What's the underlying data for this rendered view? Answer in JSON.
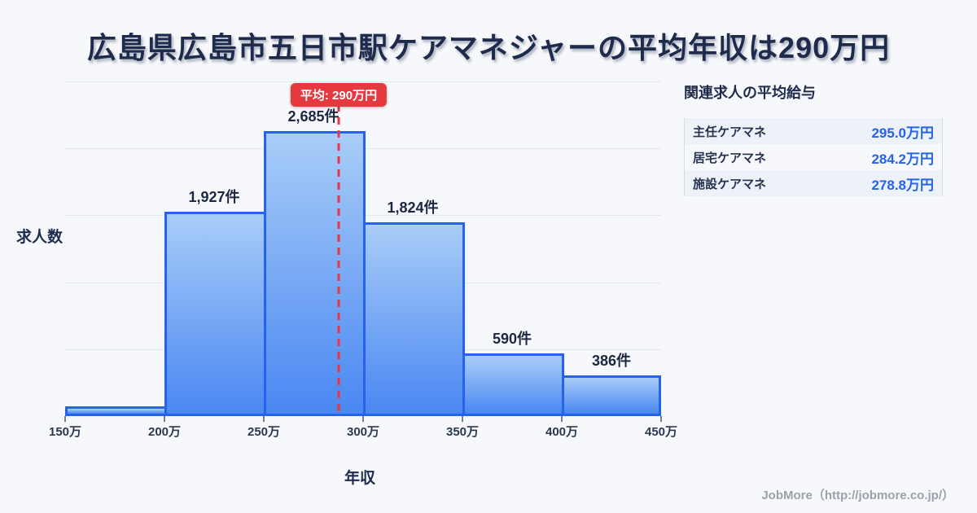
{
  "title": "広島県広島市五日市駅ケアマネジャーの平均年収は290万円",
  "chart_data": {
    "type": "bar",
    "title": "広島県広島市五日市駅ケアマネジャーの平均年収は290万円",
    "xlabel": "年収",
    "ylabel": "求人数",
    "x_tick_labels": [
      "150万",
      "200万",
      "250万",
      "300万",
      "350万",
      "400万",
      "450万"
    ],
    "bin_edges_man": [
      150,
      200,
      250,
      300,
      350,
      400,
      450
    ],
    "values": [
      90,
      1927,
      2685,
      1824,
      590,
      386
    ],
    "bar_labels": [
      "",
      "1,927件",
      "2,685件",
      "1,824件",
      "590件",
      "386件"
    ],
    "ylim": [
      0,
      3150
    ],
    "grid": true,
    "legend": false,
    "average_line": {
      "x_man": 290,
      "badge": "平均: 290万円"
    }
  },
  "side_panel": {
    "heading": "関連求人の平均給与",
    "rows": [
      {
        "label": "主任ケアマネ",
        "value": "295.0万円"
      },
      {
        "label": "居宅ケアマネ",
        "value": "284.2万円"
      },
      {
        "label": "施設ケアマネ",
        "value": "278.8万円"
      }
    ]
  },
  "footer": {
    "credit": "JobMore（http://jobmore.co.jp/）"
  },
  "colors": {
    "background": "#f7f8fb",
    "title_text": "#1e2b4c",
    "bar_border": "#2563eb",
    "bar_gradient_top": "#a9cdf8",
    "bar_gradient_bottom": "#4a87f2",
    "gridline": "#e4e7f0",
    "average_red": "#e5383f",
    "value_blue": "#2563eb",
    "row_alt_bg": "#edf1f8",
    "footer_text": "#9aa1ab"
  }
}
